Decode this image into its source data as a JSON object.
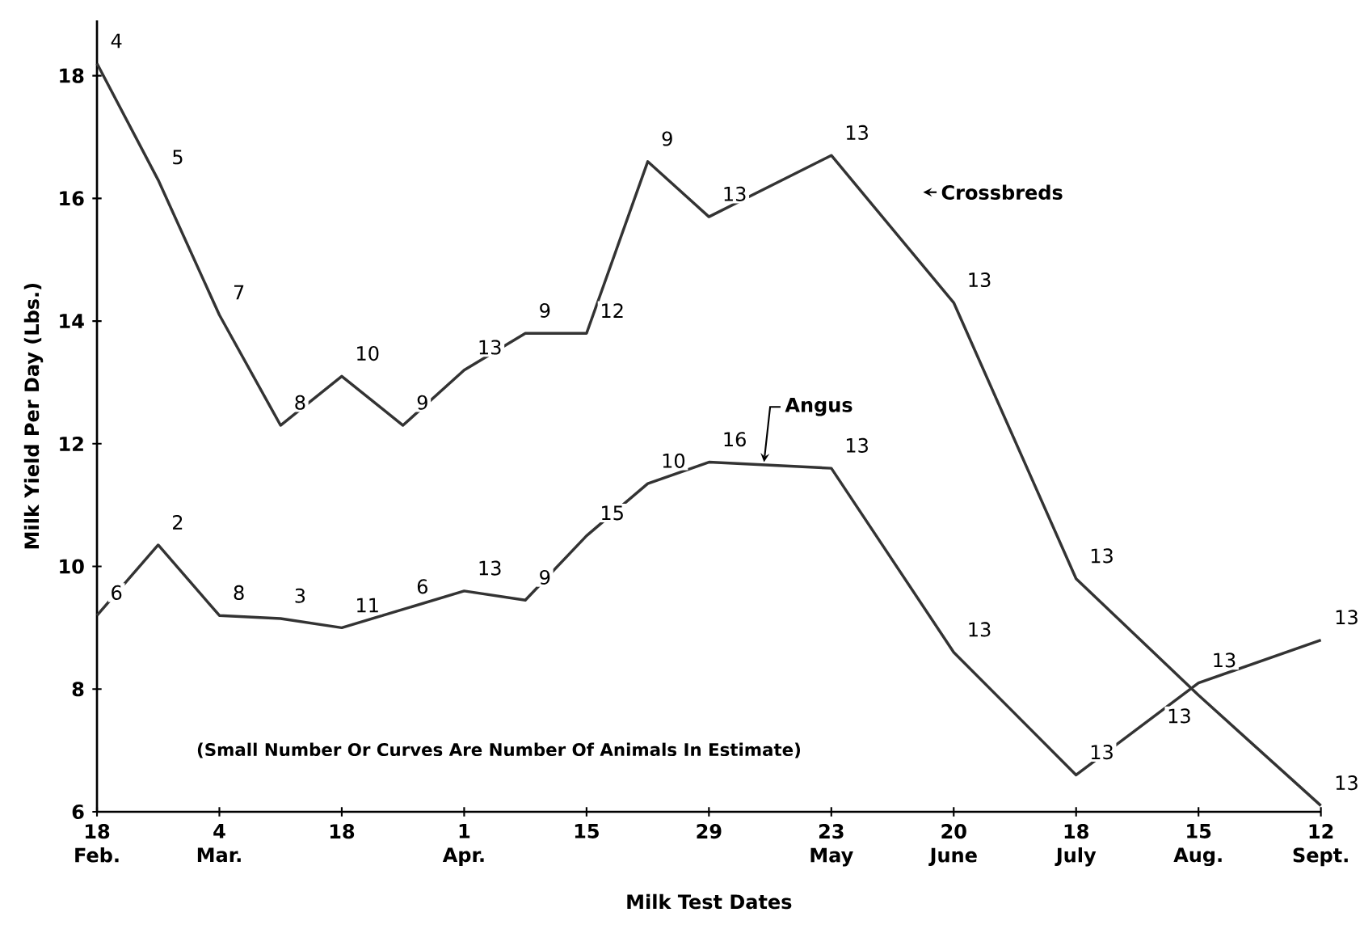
{
  "chart_data": {
    "type": "line",
    "xlabel": "Milk Test Dates",
    "ylabel": "Milk Yield Per Day (Lbs.)",
    "categories": [
      "18 Feb.",
      null,
      "4 Mar.",
      null,
      "18",
      null,
      "1 Apr.",
      null,
      "15",
      null,
      "29",
      null,
      "23 May",
      null,
      "20 June",
      null,
      "18 July",
      null,
      "15 Aug.",
      null,
      "12 Sept."
    ],
    "series": [
      {
        "name": "Crossbreds",
        "color": "#333333",
        "values": [
          18.2,
          16.3,
          14.1,
          12.3,
          13.1,
          12.3,
          13.2,
          13.8,
          13.8,
          16.6,
          15.7,
          null,
          16.7,
          null,
          14.3,
          null,
          9.8,
          null,
          7.9,
          null,
          6.1
        ]
      },
      {
        "name": "Angus",
        "color": "#333333",
        "values": [
          9.2,
          10.35,
          9.2,
          9.15,
          9.0,
          9.3,
          9.6,
          9.45,
          10.5,
          11.35,
          11.7,
          null,
          11.6,
          null,
          8.6,
          null,
          6.6,
          null,
          8.1,
          null,
          8.8
        ]
      }
    ],
    "ylim": [
      6,
      18.9
    ],
    "yticks": [
      6,
      8,
      10,
      12,
      14,
      16,
      18
    ],
    "grid": false,
    "legend": false,
    "marker": "none",
    "line_style": "solid",
    "annotations": [
      {
        "text": "4",
        "x": "18 Feb.",
        "y": 18.2
      },
      "5",
      {
        "text": "7",
        "x": "4 Mar.",
        "y": 14.1
      },
      "8",
      {
        "text": "10",
        "x": "18",
        "y": 13.1
      },
      "9",
      {
        "text": "13",
        "x": "1 Apr.",
        "y": 13.2
      },
      "9",
      {
        "text": "12",
        "x": "15",
        "y": 13.8
      },
      "9",
      {
        "text": "13",
        "x": "29",
        "y": 15.7
      },
      {
        "text": "13",
        "x": "23 May",
        "y": 16.7
      },
      {
        "text": "13",
        "x": "20 June",
        "y": 14.3
      },
      {
        "text": "13",
        "x": "18 July",
        "y": 9.8
      },
      {
        "text": "13",
        "x": "15 Aug.",
        "y": 7.9
      },
      {
        "text": "13",
        "x": "12 Sept.",
        "y": 6.1
      },
      {
        "text": "6",
        "x": "18 Feb.",
        "y": 9.2
      },
      "2",
      {
        "text": "8",
        "x": "4 Mar.",
        "y": 9.2
      },
      "3",
      {
        "text": "11",
        "x": "18",
        "y": 9.0
      },
      "6",
      {
        "text": "13",
        "x": "1 Apr.",
        "y": 9.6
      },
      "9",
      {
        "text": "15",
        "x": "15",
        "y": 10.5
      },
      "10",
      {
        "text": "16",
        "x": "29",
        "y": 11.7
      },
      {
        "text": "13",
        "x": "23 May",
        "y": 11.6
      },
      {
        "text": "13",
        "x": "20 June",
        "y": 8.6
      },
      {
        "text": "13",
        "x": "18 July",
        "y": 6.6
      },
      {
        "text": "13",
        "x": "15 Aug.",
        "y": 8.1
      },
      {
        "text": "13",
        "x": "12 Sept.",
        "y": 8.8
      },
      "(Small Number Or Curves Are Number Of Animals In Estimate)"
    ]
  }
}
